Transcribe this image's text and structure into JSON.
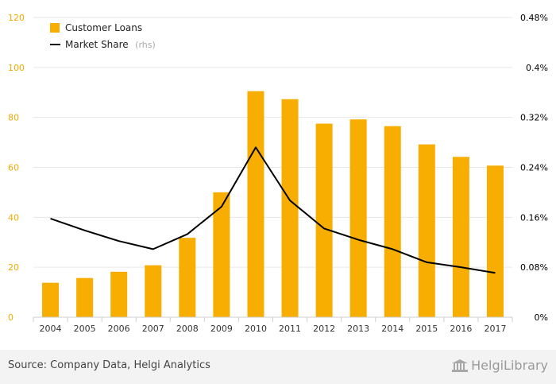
{
  "chart_data": {
    "type": "bar",
    "categories": [
      "2004",
      "2005",
      "2006",
      "2007",
      "2008",
      "2009",
      "2010",
      "2011",
      "2012",
      "2013",
      "2014",
      "2015",
      "2016",
      "2017"
    ],
    "series": [
      {
        "name": "Customer Loans",
        "type": "bar",
        "axis": "left",
        "color": "#f7ae00",
        "values": [
          13.8,
          15.7,
          18.2,
          20.8,
          31.8,
          50.0,
          90.5,
          87.3,
          77.5,
          79.2,
          76.5,
          69.2,
          64.2,
          60.7
        ]
      },
      {
        "name": "Market Share",
        "type": "line",
        "axis": "right",
        "color": "#000000",
        "values": [
          0.158,
          0.139,
          0.122,
          0.109,
          0.133,
          0.177,
          0.272,
          0.187,
          0.142,
          0.124,
          0.109,
          0.088,
          0.08,
          0.071
        ]
      }
    ],
    "left_axis": {
      "ylim": [
        0,
        120
      ],
      "ticks": [
        "0",
        "20",
        "40",
        "60",
        "80",
        "100",
        "120"
      ],
      "color": "#f0ab00"
    },
    "right_axis": {
      "ylim": [
        0,
        0.48
      ],
      "ticks": [
        "0%",
        "0.08%",
        "0.16%",
        "0.24%",
        "0.32%",
        "0.4%",
        "0.48%"
      ],
      "color": "#000000"
    },
    "legend": {
      "placement": "top-left",
      "items": [
        {
          "label": "Customer Loans",
          "suffix": ""
        },
        {
          "label": "Market Share",
          "suffix": "(rhs)"
        }
      ]
    },
    "grid": true
  },
  "footer": {
    "source": "Source: Company Data, Helgi Analytics",
    "logo": "HelgiLibrary"
  }
}
